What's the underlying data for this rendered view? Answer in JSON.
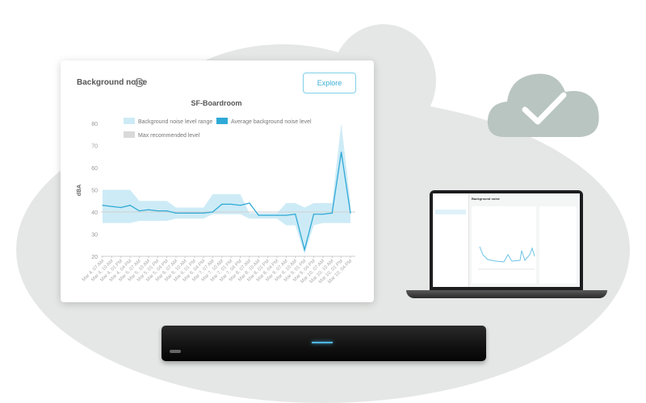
{
  "card": {
    "title": "Background noise",
    "info_icon": "info-circle-icon",
    "explore_label": "Explore"
  },
  "laptop": {
    "title": "Background noise"
  },
  "colors": {
    "range_band": "#cdebf6",
    "average_line": "#2fa9d6",
    "max_level": "#d9d9d9",
    "cloud": "#e4e7e5",
    "cloud_icon": "#b9c5c0"
  },
  "cloud_icon": "cloud-check-icon",
  "chart_data": {
    "type": "line",
    "title": "SF-Boardroom",
    "ylabel": "dBA",
    "xlabel": "",
    "ylim": [
      20,
      80
    ],
    "yticks": [
      20,
      30,
      40,
      50,
      60,
      70,
      80
    ],
    "legend": [
      "Background noise level range",
      "Average background noise level",
      "Max recommended level"
    ],
    "legend_placement": "top",
    "grid": false,
    "max_recommended_level": 40,
    "categories": [
      "Mar 4, 07 AM",
      "Mar 4, 10 AM",
      "Mar 4, 01 PM",
      "Mar 4, 04 PM",
      "Mar 5, 07 AM",
      "Mar 5, 10 AM",
      "Mar 5, 01 PM",
      "Mar 5, 04 PM",
      "Mar 6, 07 AM",
      "Mar 6, 10 AM",
      "Mar 6, 01 PM",
      "Mar 6, 04 PM",
      "Mar 7, 07 AM",
      "Mar 7, 10 AM",
      "Mar 7, 01 PM",
      "Mar 7, 04 PM",
      "Mar 8, 07 AM",
      "Mar 8, 10 AM",
      "Mar 8, 01 PM",
      "Mar 8, 04 PM",
      "Mar 9, 07 AM",
      "Mar 9, 10 AM",
      "Mar 9, 01 PM",
      "Mar 9, 04 PM",
      "Mar 10, 07 AM",
      "Mar 10, 10 AM",
      "Mar 10, 01 PM",
      "Mar 10, 04 PM"
    ],
    "series": [
      {
        "name": "Average background noise level",
        "values": [
          43,
          42.5,
          42,
          43,
          40.5,
          41,
          40.5,
          40.5,
          39.5,
          39.5,
          39.5,
          39.5,
          40,
          43.5,
          43.5,
          43,
          44,
          38.5,
          38.5,
          38.5,
          38.5,
          39,
          23,
          39,
          39,
          39.5,
          67,
          39.5
        ]
      },
      {
        "name": "Background noise level range",
        "low": [
          35,
          35,
          35,
          35,
          36,
          36,
          36,
          36,
          37,
          37,
          37,
          37,
          39,
          39,
          39,
          39,
          37,
          37,
          37,
          37,
          34,
          34,
          21,
          34,
          35,
          35,
          35,
          35
        ],
        "high": [
          50,
          50,
          50,
          50,
          45,
          45,
          45,
          45,
          42,
          42,
          42,
          42,
          48,
          48,
          48,
          48,
          39.5,
          39.5,
          39.5,
          39.5,
          44,
          44,
          42,
          44,
          44,
          44,
          80,
          44
        ]
      }
    ]
  }
}
